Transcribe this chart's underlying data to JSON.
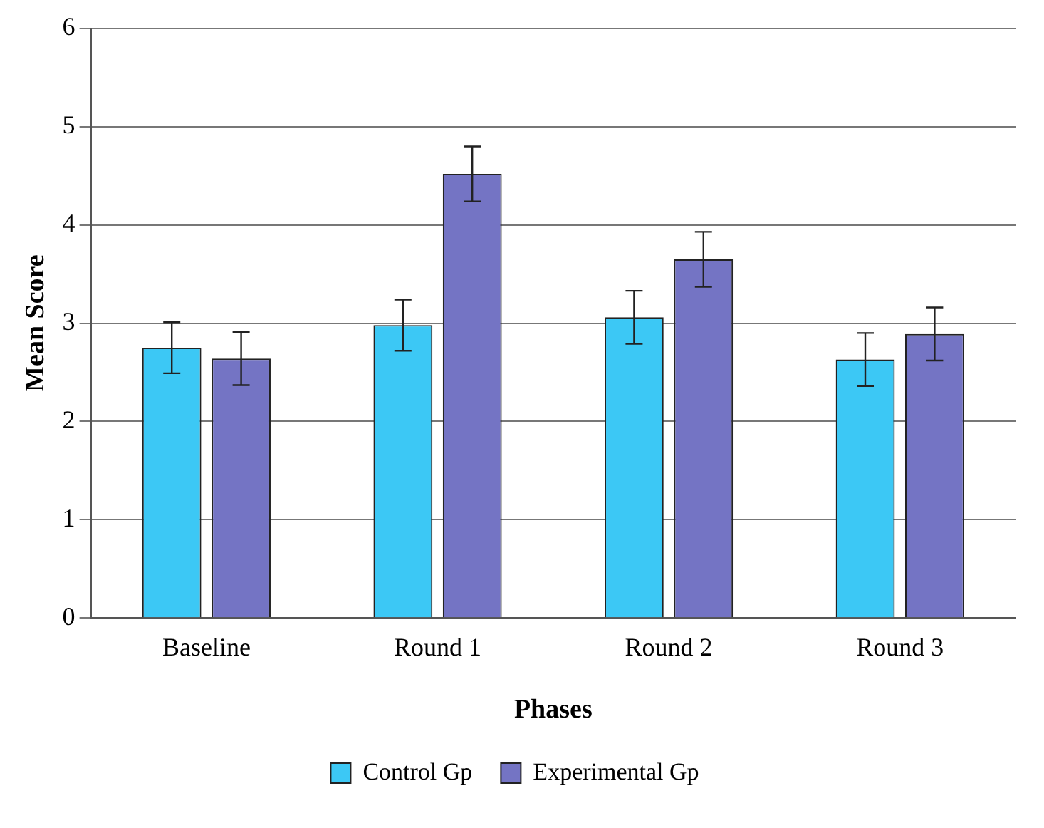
{
  "chart_data": {
    "type": "bar",
    "xlabel": "Phases",
    "ylabel": "Mean Score",
    "categories": [
      "Baseline",
      "Round 1",
      "Round 2",
      "Round 3"
    ],
    "series": [
      {
        "name": "Control Gp",
        "color": "#3cc8f5",
        "values": [
          2.75,
          2.98,
          3.06,
          2.63
        ],
        "errors": [
          0.26,
          0.26,
          0.27,
          0.27
        ]
      },
      {
        "name": "Experimental Gp",
        "color": "#7474c4",
        "values": [
          2.64,
          4.52,
          3.65,
          2.89
        ],
        "errors": [
          0.27,
          0.28,
          0.28,
          0.27
        ]
      }
    ],
    "ylim": [
      0,
      6
    ],
    "yticks": [
      0,
      1,
      2,
      3,
      4,
      5,
      6
    ],
    "grid": "y",
    "legend": "bottom"
  }
}
